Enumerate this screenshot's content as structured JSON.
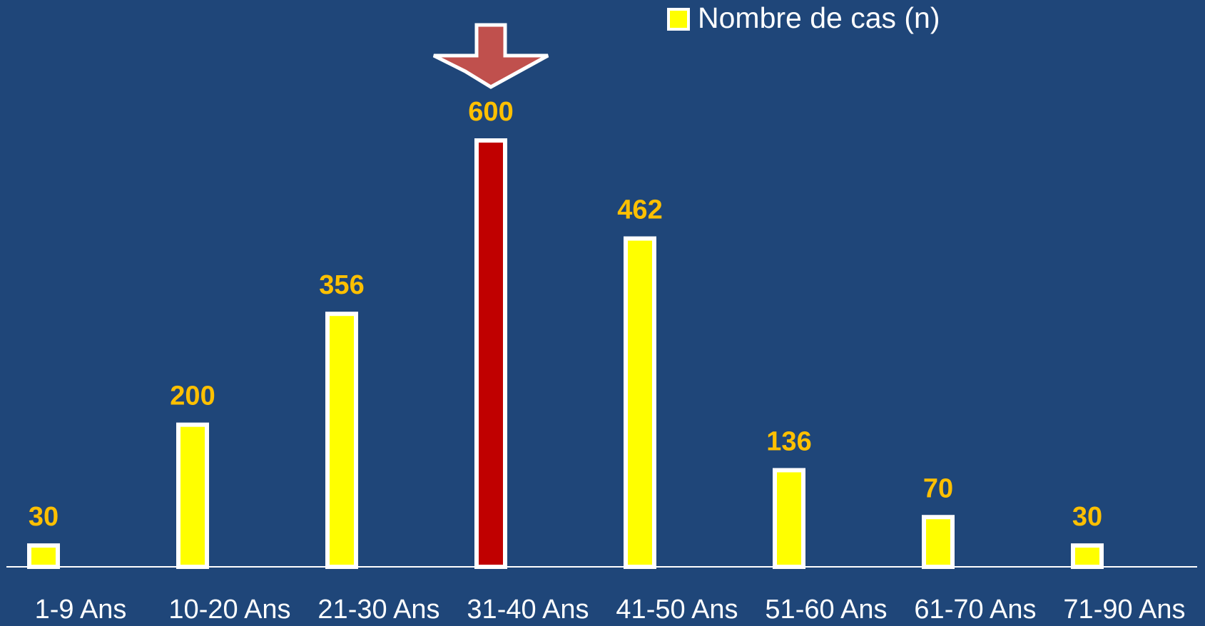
{
  "chart_data": {
    "type": "bar",
    "legend": "Nombre de cas (n)",
    "categories": [
      "1-9 Ans",
      "10-20 Ans",
      "21-30 Ans",
      "31-40 Ans",
      "41-50 Ans",
      "51-60 Ans",
      "61-70 Ans",
      "71-90 Ans"
    ],
    "values": [
      30,
      200,
      356,
      600,
      462,
      136,
      70,
      30
    ],
    "color": "#ffff00",
    "colors": [
      "#ffff00",
      "#ffff00",
      "#ffff00",
      "#c00000",
      "#ffff00",
      "#ffff00",
      "#ffff00",
      "#ffff00"
    ]
  }
}
